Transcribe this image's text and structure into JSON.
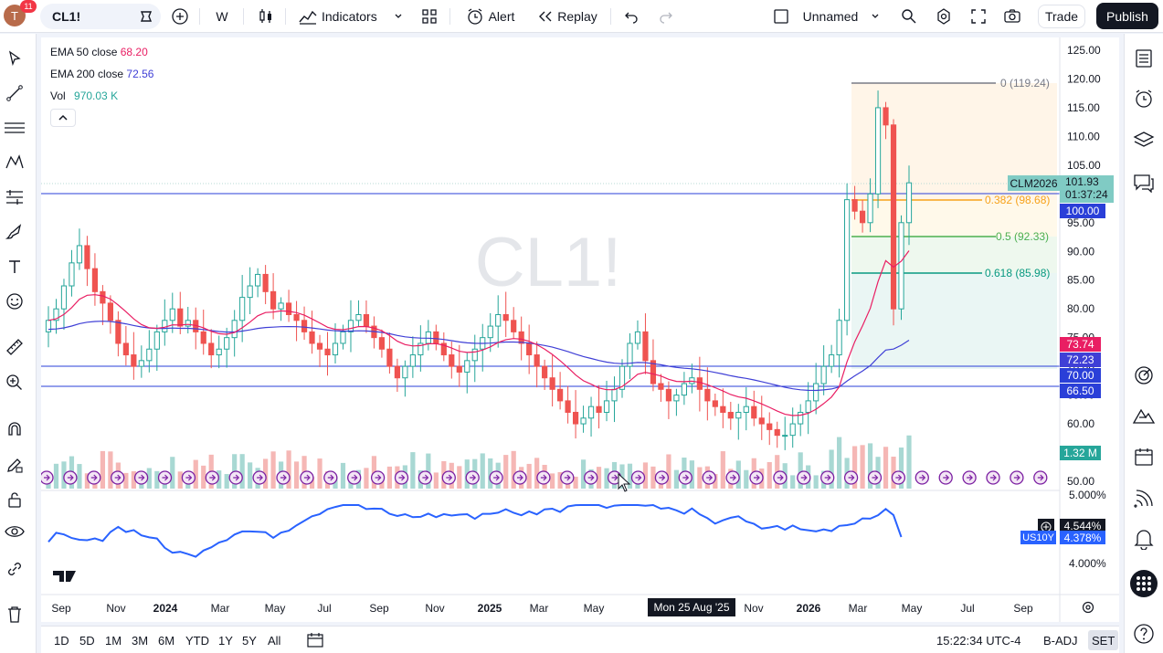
{
  "topbar": {
    "avatar_letter": "T",
    "notification_count": "11",
    "symbol": "CL1!",
    "interval": "W",
    "indicators_label": "Indicators",
    "alert_label": "Alert",
    "replay_label": "Replay",
    "layout_name": "Unnamed",
    "trade_label": "Trade",
    "publish_label": "Publish"
  },
  "legend": {
    "ema50_label": "EMA 50 close",
    "ema50_value": "68.20",
    "ema200_label": "EMA 200 close",
    "ema200_value": "72.56",
    "vol_label": "Vol",
    "vol_value": "970.03 K"
  },
  "watermark": "CL1!",
  "colors": {
    "up": "#26a69a",
    "down": "#ef5350",
    "up_soft": "#a8d8d3",
    "down_soft": "#f5b7b5",
    "ema50": "#e91e63",
    "ema200": "#3f3fd6",
    "fib0": "#787b86",
    "fib382": "#f7a21b",
    "fib50": "#4caf50",
    "fib618": "#089981",
    "us10y": "#2962ff"
  },
  "fib_labels": [
    {
      "text": "0 (119.24)",
      "price": 119.24
    },
    {
      "text": "0.382 (98.68)",
      "price": 98.68
    },
    {
      "text": "0.5 (92.33)",
      "price": 92.33
    },
    {
      "text": "0.618 (85.98)",
      "price": 85.98
    }
  ],
  "price_scale": [
    "125.00",
    "120.00",
    "115.00",
    "110.00",
    "105.00",
    "100.00",
    "95.00",
    "90.00",
    "85.00",
    "80.00",
    "75.00",
    "70.00",
    "65.00",
    "60.00",
    "55.00",
    "50.00"
  ],
  "price_tags": {
    "symbol_tag": "CLM2026",
    "last_price": "101.93",
    "countdown": "01:37:24",
    "level_100": "100.00",
    "ema50_tag": "73.74",
    "ema200_tag": "72.23",
    "level_70": "70.00",
    "level_66": "66.50",
    "volume_tag": "1.32 M"
  },
  "us10y": {
    "label": "US10Y",
    "value1": "4.544%",
    "value2": "4.378%",
    "scale": [
      "5.000%",
      "4.000%"
    ]
  },
  "time_axis": [
    "Sep",
    "Nov",
    "2024",
    "Mar",
    "May",
    "Jul",
    "Sep",
    "Nov",
    "2025",
    "Mar",
    "May",
    "Jul",
    "Sep",
    "Nov",
    "2026",
    "Mar",
    "May",
    "Jul",
    "Sep"
  ],
  "crosshair_date": "Mon 25 Aug '25",
  "bottombar": {
    "ranges": [
      "1D",
      "5D",
      "1M",
      "3M",
      "6M",
      "YTD",
      "1Y",
      "5Y",
      "All"
    ],
    "clock": "15:22:34 UTC-4",
    "badj": "B-ADJ",
    "set": "SET"
  },
  "chart_data": {
    "type": "candlestick",
    "title": "CL1!",
    "interval": "W",
    "ylim": [
      50,
      125
    ],
    "weekly_closes_approx": [
      78,
      80,
      84,
      88,
      91,
      87,
      83,
      81,
      78,
      74,
      72,
      70,
      71,
      73,
      76,
      78,
      80,
      77,
      78,
      76,
      74,
      72,
      73,
      75,
      78,
      82,
      84,
      86,
      83,
      80,
      81,
      79,
      78,
      76,
      74,
      73,
      72,
      74,
      76,
      78,
      79,
      77,
      75,
      73,
      70,
      68,
      70,
      72,
      74,
      76,
      74,
      72,
      70,
      69,
      71,
      73,
      75,
      77,
      79,
      78,
      76,
      74,
      72,
      70,
      68,
      66,
      64,
      62,
      60,
      61,
      63,
      62,
      64,
      66,
      70,
      74,
      76,
      71,
      67,
      66,
      64,
      65,
      67,
      68,
      66,
      64,
      63,
      62,
      61,
      62,
      63,
      61,
      60,
      59,
      58,
      58,
      60,
      62,
      64,
      67,
      70,
      72,
      78,
      99,
      97,
      95,
      100,
      115,
      112,
      80,
      95,
      101.93
    ]
  }
}
